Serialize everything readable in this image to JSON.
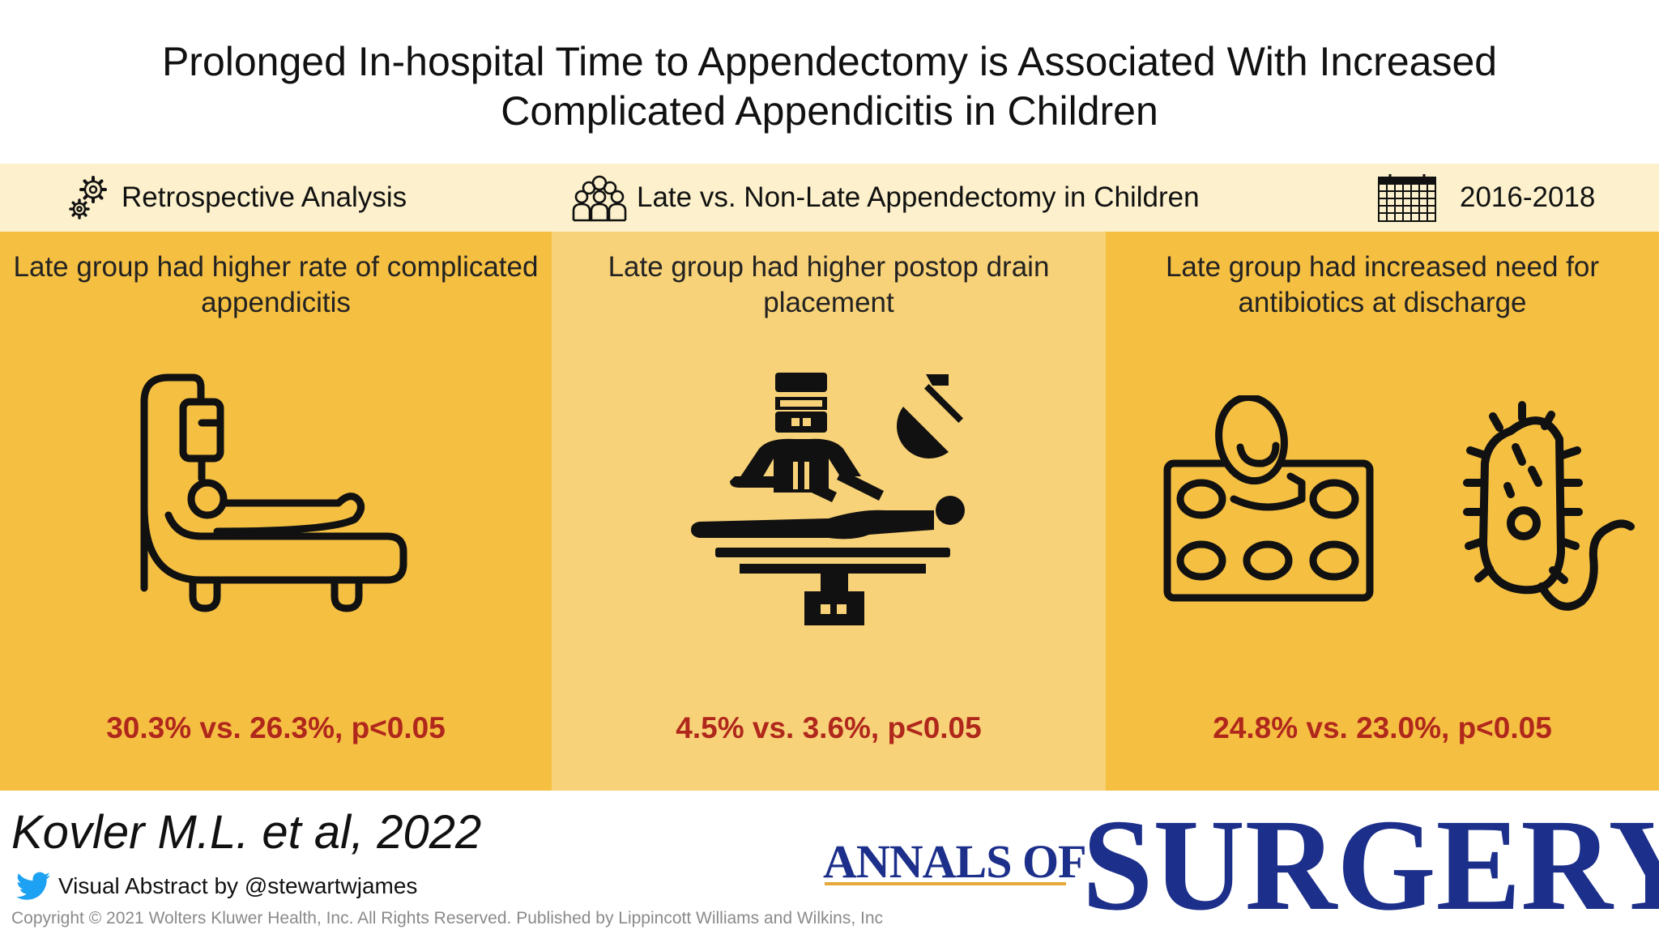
{
  "title": {
    "line1": "Prolonged In-hospital Time to Appendectomy is Associated With Increased",
    "line2": "Complicated Appendicitis in Children"
  },
  "study_band": {
    "design": "Retrospective Analysis",
    "comparison": "Late vs. Non-Late Appendectomy in Children",
    "period": "2016-2018"
  },
  "findings": [
    {
      "line1": "Late group had higher rate of complicated",
      "line2": "appendicitis",
      "stat": "30.3% vs. 26.3%, p<0.05",
      "icon": "hospital-bed-iv-icon"
    },
    {
      "line1": "Late group had higher postop drain",
      "line2": "placement",
      "stat": "4.5% vs. 3.6%, p<0.05",
      "icon": "surgeon-operating-icon"
    },
    {
      "line1": "Late group had increased need for",
      "line2": "antibiotics at discharge",
      "stat": "24.8% vs. 23.0%, p<0.05",
      "icon": "pill-blister-bacteria-icon"
    }
  ],
  "footer": {
    "citation": "Kovler M.L. et al, 2022",
    "credit": "Visual Abstract by @stewartwjames",
    "copyright": "Copyright © 2021 Wolters Kluwer Health, Inc. All Rights Reserved. Published by Lippincott Williams and Wilkins, Inc",
    "journal_small": "ANNALS OF",
    "journal_big": "SURGERY"
  },
  "colors": {
    "band": "#fcf1cc",
    "panel_dark": "#f5bf42",
    "panel_light": "#f8d278",
    "stat_text": "#b0271c",
    "journal_blue": "#1c2f8a",
    "journal_rule": "#e6a83a",
    "twitter": "#1da1f2"
  }
}
